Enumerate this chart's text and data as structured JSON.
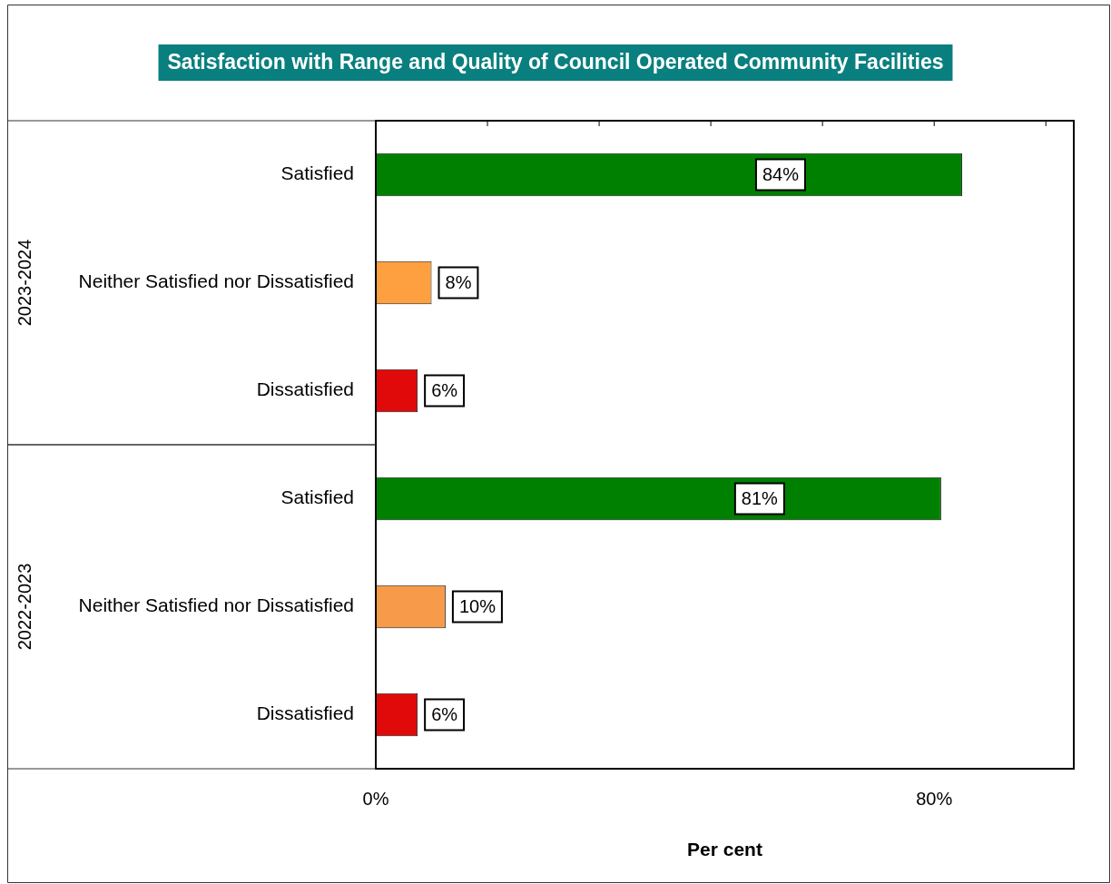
{
  "chart_data": {
    "type": "bar",
    "orientation": "horizontal",
    "title": "Satisfaction with Range and Quality of Council Operated Community Facilities",
    "categories": [
      "Satisfied",
      "Neither Satisfied nor Dissatisfied",
      "Dissatisfied",
      "Satisfied",
      "Neither Satisfied nor Dissatisfied",
      "Dissatisfied"
    ],
    "values": [
      84,
      8,
      6,
      81,
      10,
      6
    ],
    "value_labels": [
      "84%",
      "8%",
      "6%",
      "81%",
      "10%",
      "6%"
    ],
    "colors": [
      "#008000",
      "#ffa040",
      "#e00a0a",
      "#008000",
      "#f79a4a",
      "#e00a0a"
    ],
    "xlabel": "Per cent",
    "xlim": [
      0,
      100
    ],
    "xticks": [
      {
        "value": 0,
        "label": "0%"
      },
      {
        "value": 16,
        "label": null
      },
      {
        "value": 32,
        "label": null
      },
      {
        "value": 48,
        "label": null
      },
      {
        "value": 64,
        "label": null
      },
      {
        "value": 80,
        "label": "80%"
      },
      {
        "value": 96,
        "label": null
      }
    ],
    "annotations": [
      "2023-2024",
      "2022-2023"
    ],
    "grid": false,
    "legend": false
  }
}
